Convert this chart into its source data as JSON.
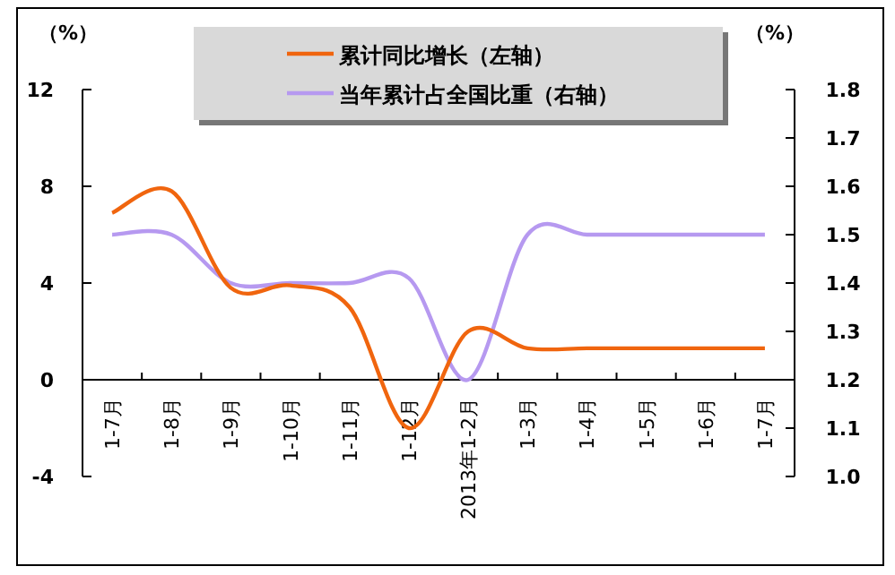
{
  "chart_data": {
    "type": "line",
    "categories": [
      "1-7月",
      "1-8月",
      "1-9月",
      "1-10月",
      "1-11月",
      "1-12月",
      "2013年1-2月",
      "1-3月",
      "1-4月",
      "1-5月",
      "1-6月",
      "1-7月"
    ],
    "ylabel": "（%）",
    "y2label": "（%）",
    "ylim": [
      -4,
      12
    ],
    "yticks": [
      -4,
      0,
      4,
      8,
      12
    ],
    "y2lim": [
      1.0,
      1.8
    ],
    "y2ticks": [
      {
        "value": 1.0,
        "label": "1.0"
      },
      1.1,
      1.2,
      1.3,
      1.4,
      1.5,
      1.6,
      1.7,
      1.8
    ],
    "legend": "top",
    "grid": false,
    "marker": "none",
    "line_style": "solid",
    "series": [
      {
        "name": "累计同比增长（左轴）",
        "color": "#f0650e",
        "values": [
          6.9,
          7.8,
          3.8,
          3.9,
          3.0,
          -2.0,
          2.0,
          1.3,
          1.3,
          1.3,
          1.3,
          1.3
        ]
      },
      {
        "name": "当年累计占全国比重（右轴）",
        "color": "#b699f0",
        "axis": "y2",
        "values": [
          1.5,
          1.5,
          1.4,
          1.4,
          1.4,
          1.41,
          1.2,
          1.5,
          1.5,
          1.5,
          1.5,
          1.5
        ]
      }
    ]
  }
}
